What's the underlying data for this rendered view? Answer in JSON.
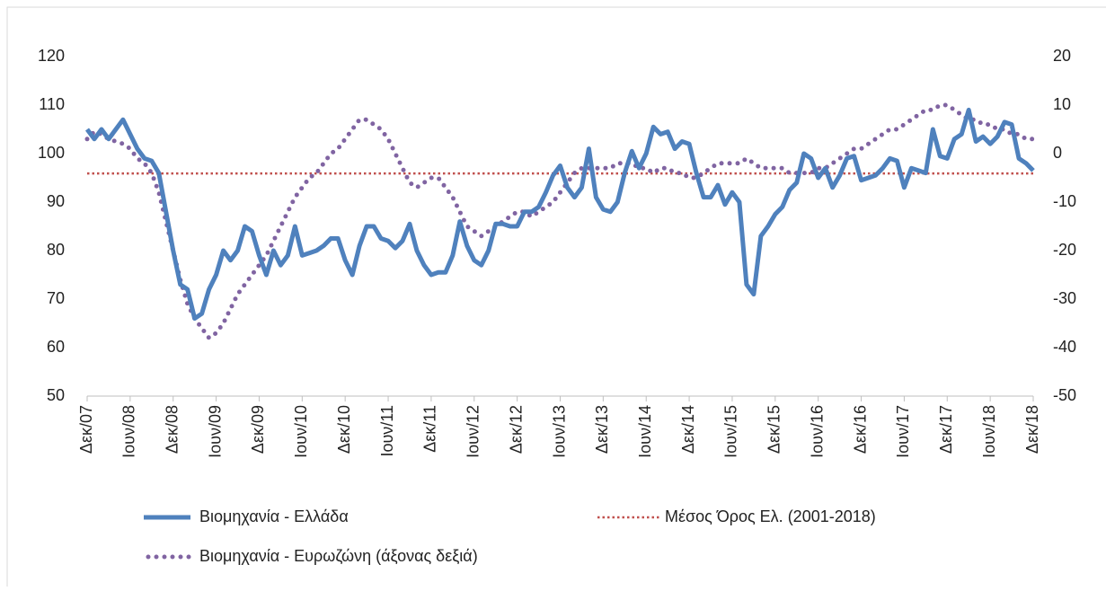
{
  "chart_data": {
    "type": "line",
    "categories": [
      "Δεκ/07",
      null,
      null,
      null,
      null,
      null,
      "Ιουν/08",
      null,
      null,
      null,
      null,
      null,
      "Δεκ/08",
      null,
      null,
      null,
      null,
      null,
      "Ιουν/09",
      null,
      null,
      null,
      null,
      null,
      "Δεκ/09",
      null,
      null,
      null,
      null,
      null,
      "Ιουν/10",
      null,
      null,
      null,
      null,
      null,
      "Δεκ/10",
      null,
      null,
      null,
      null,
      null,
      "Ιουν/11",
      null,
      null,
      null,
      null,
      null,
      "Δεκ/11",
      null,
      null,
      null,
      null,
      null,
      "Ιουν/12",
      null,
      null,
      null,
      null,
      null,
      "Δεκ/12",
      null,
      null,
      null,
      null,
      null,
      "Ιουν/13",
      null,
      null,
      null,
      null,
      null,
      "Δεκ/13",
      null,
      null,
      null,
      null,
      null,
      "Ιουν/14",
      null,
      null,
      null,
      null,
      null,
      "Δεκ/14",
      null,
      null,
      null,
      null,
      null,
      "Ιουν/15",
      null,
      null,
      null,
      null,
      null,
      "Δεκ/15",
      null,
      null,
      null,
      null,
      null,
      "Ιουν/16",
      null,
      null,
      null,
      null,
      null,
      "Δεκ/16",
      null,
      null,
      null,
      null,
      null,
      "Ιουν/17",
      null,
      null,
      null,
      null,
      null,
      "Δεκ/17",
      null,
      null,
      null,
      null,
      null,
      "Ιουν/18",
      null,
      null,
      null,
      null,
      null,
      "Δεκ/18"
    ],
    "series": [
      {
        "name": "Βιομηχανία  - Ελλάδα",
        "color": "#4f81bd",
        "style": "solid",
        "values": [
          105,
          103,
          105,
          103,
          105,
          107,
          104,
          101,
          99,
          98.5,
          96,
          88,
          80,
          73,
          72,
          66,
          67,
          72,
          75,
          80,
          78,
          80,
          85,
          84,
          79,
          75,
          80,
          77,
          79,
          85,
          79,
          79.5,
          80,
          81,
          82.5,
          82.5,
          78,
          75,
          81,
          85,
          85,
          82.5,
          82,
          80.5,
          82,
          85.5,
          80,
          77,
          75,
          75.5,
          75.5,
          79,
          86,
          81,
          78,
          77,
          80,
          85.5,
          85.5,
          85,
          85,
          88,
          88,
          89,
          92,
          95.5,
          97.5,
          93,
          91,
          93,
          101,
          91,
          88.5,
          88,
          90,
          96,
          100.5,
          97,
          100,
          105.5,
          104,
          104.5,
          101,
          102.5,
          102,
          96,
          91,
          91,
          93.5,
          89.5,
          92,
          90,
          73,
          71,
          83,
          85,
          87.5,
          89,
          92.5,
          94,
          100,
          99,
          95,
          97,
          93,
          95.5,
          99,
          99.5,
          94.5,
          95,
          95.5,
          97,
          99,
          98.5,
          93,
          97,
          96.5,
          96,
          105,
          99.5,
          99,
          103,
          104,
          109,
          102.5,
          103.5,
          102,
          103.5,
          106.5,
          106,
          99,
          98,
          96.5
        ]
      },
      {
        "name": "Βιομηχανία - Ευρωζώνη (άξονας δεξιά)",
        "color": "#8064a2",
        "style": "dotted",
        "axis": "y2",
        "values": [
          3,
          4.5,
          4,
          3,
          2.5,
          2,
          1,
          -1,
          -2,
          -4,
          -8,
          -14,
          -20,
          -26,
          -31,
          -34,
          -36,
          -38,
          -37,
          -35,
          -32,
          -29,
          -27,
          -25,
          -23,
          -21,
          -18,
          -15,
          -12,
          -9,
          -7,
          -5,
          -4,
          -2,
          0,
          1,
          3,
          5,
          7,
          7,
          6,
          5,
          3,
          0,
          -3,
          -6,
          -7,
          -6,
          -5,
          -5,
          -7,
          -9,
          -12,
          -15,
          -16,
          -17,
          -16,
          -15,
          -14,
          -13,
          -12,
          -12,
          -13,
          -12,
          -11,
          -10,
          -8,
          -6,
          -4,
          -3,
          -3,
          -3,
          -3,
          -3,
          -2,
          -2,
          -2,
          -3,
          -3,
          -4,
          -3,
          -3,
          -4,
          -4,
          -5,
          -5,
          -4,
          -3,
          -2,
          -2,
          -2,
          -2,
          -1,
          -2,
          -3,
          -3,
          -3,
          -3,
          -4,
          -4,
          -4,
          -4,
          -3,
          -3,
          -2,
          -1,
          0,
          1,
          1,
          2,
          3,
          4,
          5,
          5,
          6,
          7,
          8,
          9,
          9,
          10,
          10,
          9,
          8,
          7,
          7,
          6,
          6,
          5,
          5,
          4,
          4,
          3,
          3
        ]
      }
    ],
    "hlines": [
      {
        "name": "Μέσος Όρος Ελ. (2001-2018)",
        "color": "#c0504d",
        "value": 95.9
      }
    ],
    "ylim": [
      50,
      120
    ],
    "yticks": [
      50,
      60,
      70,
      80,
      90,
      100,
      110,
      120
    ],
    "y2lim": [
      -50,
      20
    ],
    "y2ticks": [
      -50,
      -40,
      -30,
      -20,
      -10,
      0,
      10,
      20
    ],
    "grid": false
  }
}
